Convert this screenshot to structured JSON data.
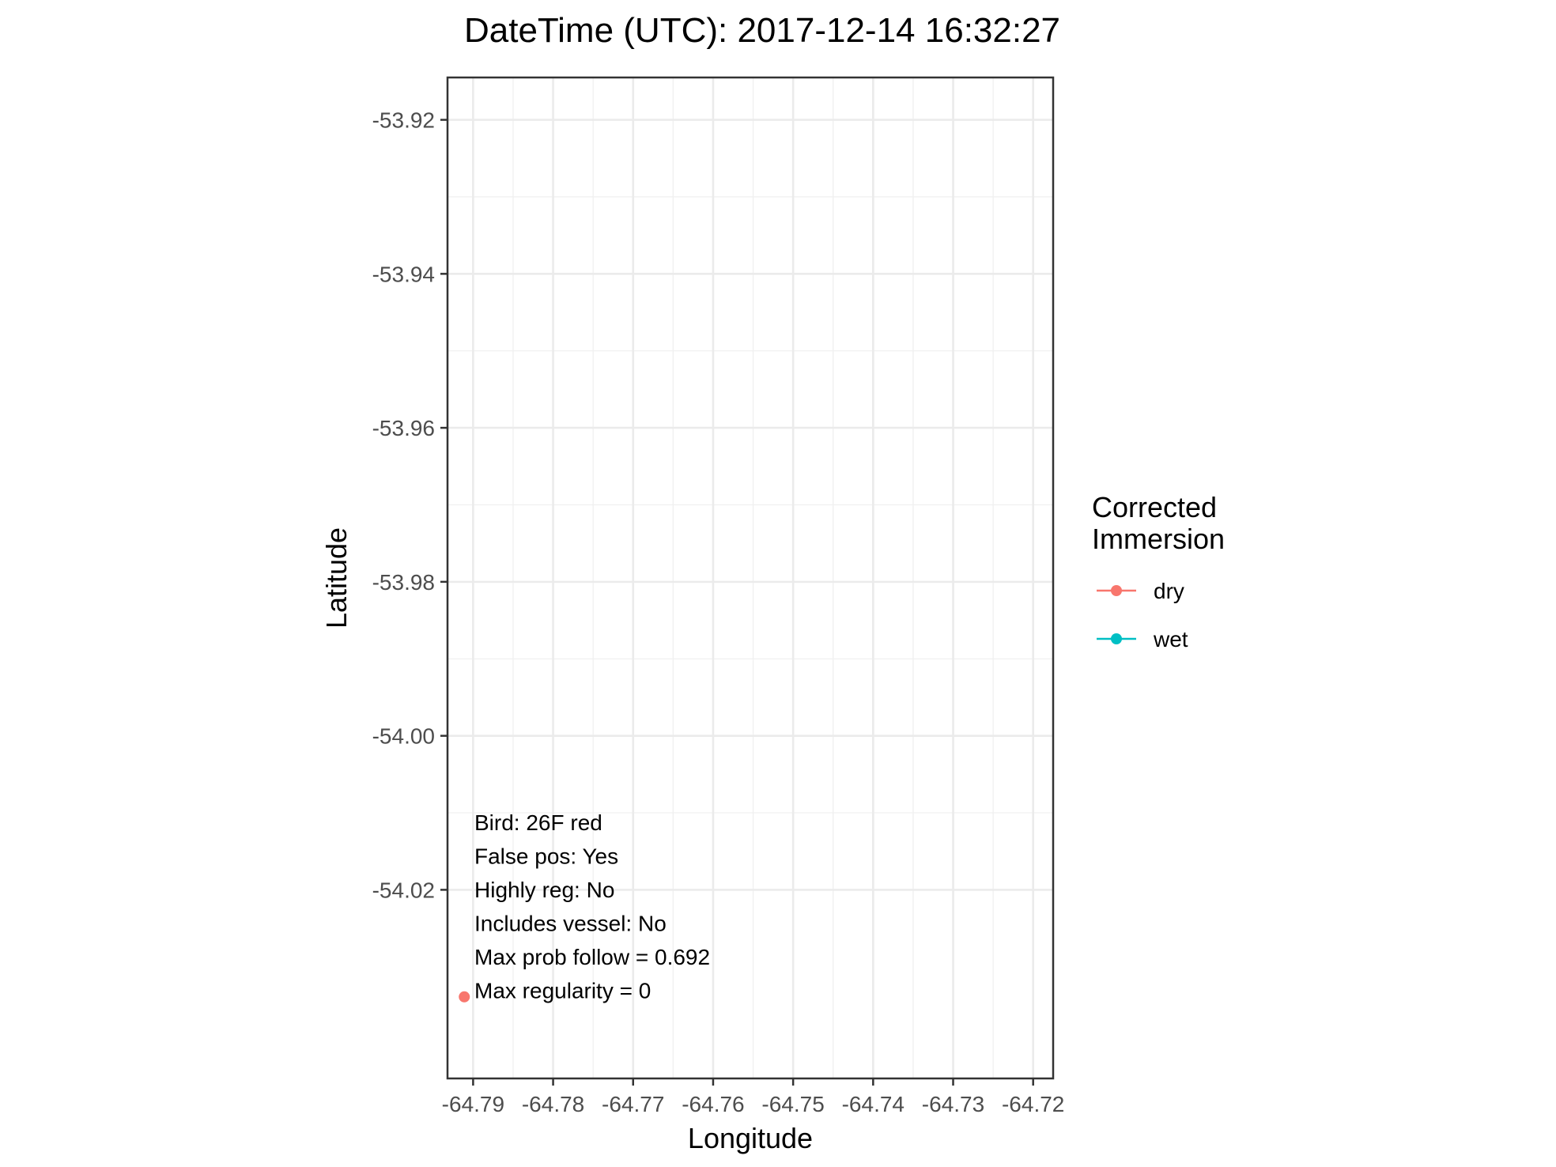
{
  "chart_data": {
    "type": "scatter",
    "title": "DateTime (UTC): 2017-12-14 16:32:27",
    "xlabel": "Longitude",
    "ylabel": "Latitude",
    "xlim": [
      -64.7932,
      -64.7175
    ],
    "ylim": [
      -54.0445,
      -53.9145
    ],
    "x_ticks": [
      -64.79,
      -64.78,
      -64.77,
      -64.76,
      -64.75,
      -64.74,
      -64.73,
      -64.72
    ],
    "x_tick_labels": [
      "-64.79",
      "-64.78",
      "-64.77",
      "-64.76",
      "-64.75",
      "-64.74",
      "-64.73",
      "-64.72"
    ],
    "y_ticks": [
      -53.92,
      -53.94,
      -53.96,
      -53.98,
      -54.0,
      -54.02
    ],
    "y_tick_labels": [
      "-53.92",
      "-53.94",
      "-53.96",
      "-53.98",
      "-54.00",
      "-54.02"
    ],
    "grid": true,
    "legend": {
      "title": [
        "Corrected",
        "Immersion"
      ],
      "placement": "right",
      "entries": [
        {
          "label": "dry",
          "color": "#F8766D"
        },
        {
          "label": "wet",
          "color": "#00BFC4"
        }
      ]
    },
    "points": [
      {
        "x": -64.7911,
        "y": -54.0339,
        "series": "dry"
      }
    ],
    "annotations": [
      "Bird: 26F red",
      "False pos: Yes",
      "Highly reg: No",
      "Includes vessel: No",
      "Max prob follow = 0.692",
      "Max regularity = 0"
    ]
  }
}
